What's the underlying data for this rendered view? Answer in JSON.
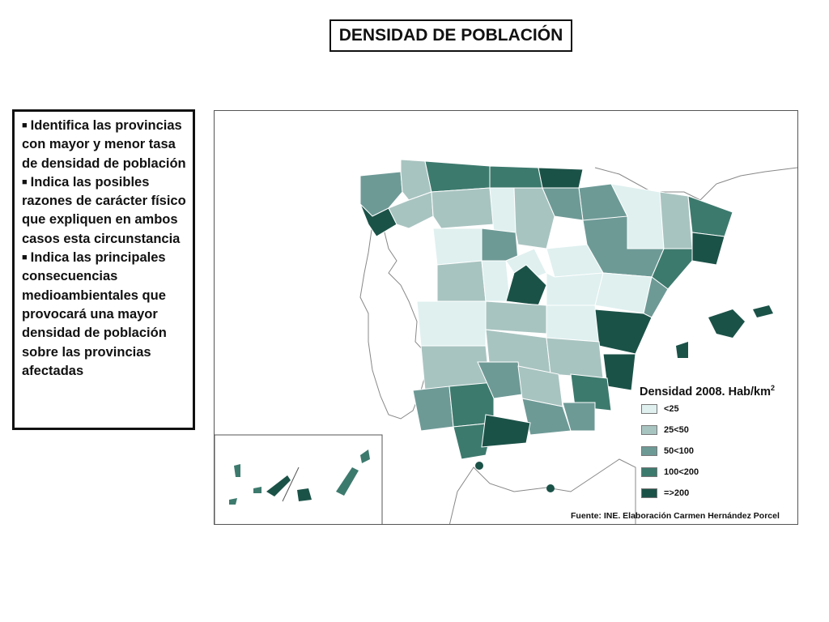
{
  "title": "DENSIDAD DE POBLACIÓN",
  "tasks": [
    "Identifica las provincias con mayor y menor tasa de densidad de población",
    "Indica las posibles razones de carácter físico que expliquen  en ambos casos esta circunstancia",
    "Indica las principales  consecuencias medioambientales que provocará una mayor densidad de población sobre las provincias afectadas"
  ],
  "legend": {
    "title": "Densidad 2008. Hab/km",
    "title_sup": "2",
    "items": [
      {
        "label": "<25",
        "color": "#dff0ef"
      },
      {
        "label": "25<50",
        "color": "#a8c4c1"
      },
      {
        "label": "50<100",
        "color": "#6e9a96"
      },
      {
        "label": "100<200",
        "color": "#3d7a6e"
      },
      {
        "label": "=>200",
        "color": "#1b5248"
      }
    ]
  },
  "source": "Fuente: INE. Elaboración Carmen Hernández Porcel"
}
